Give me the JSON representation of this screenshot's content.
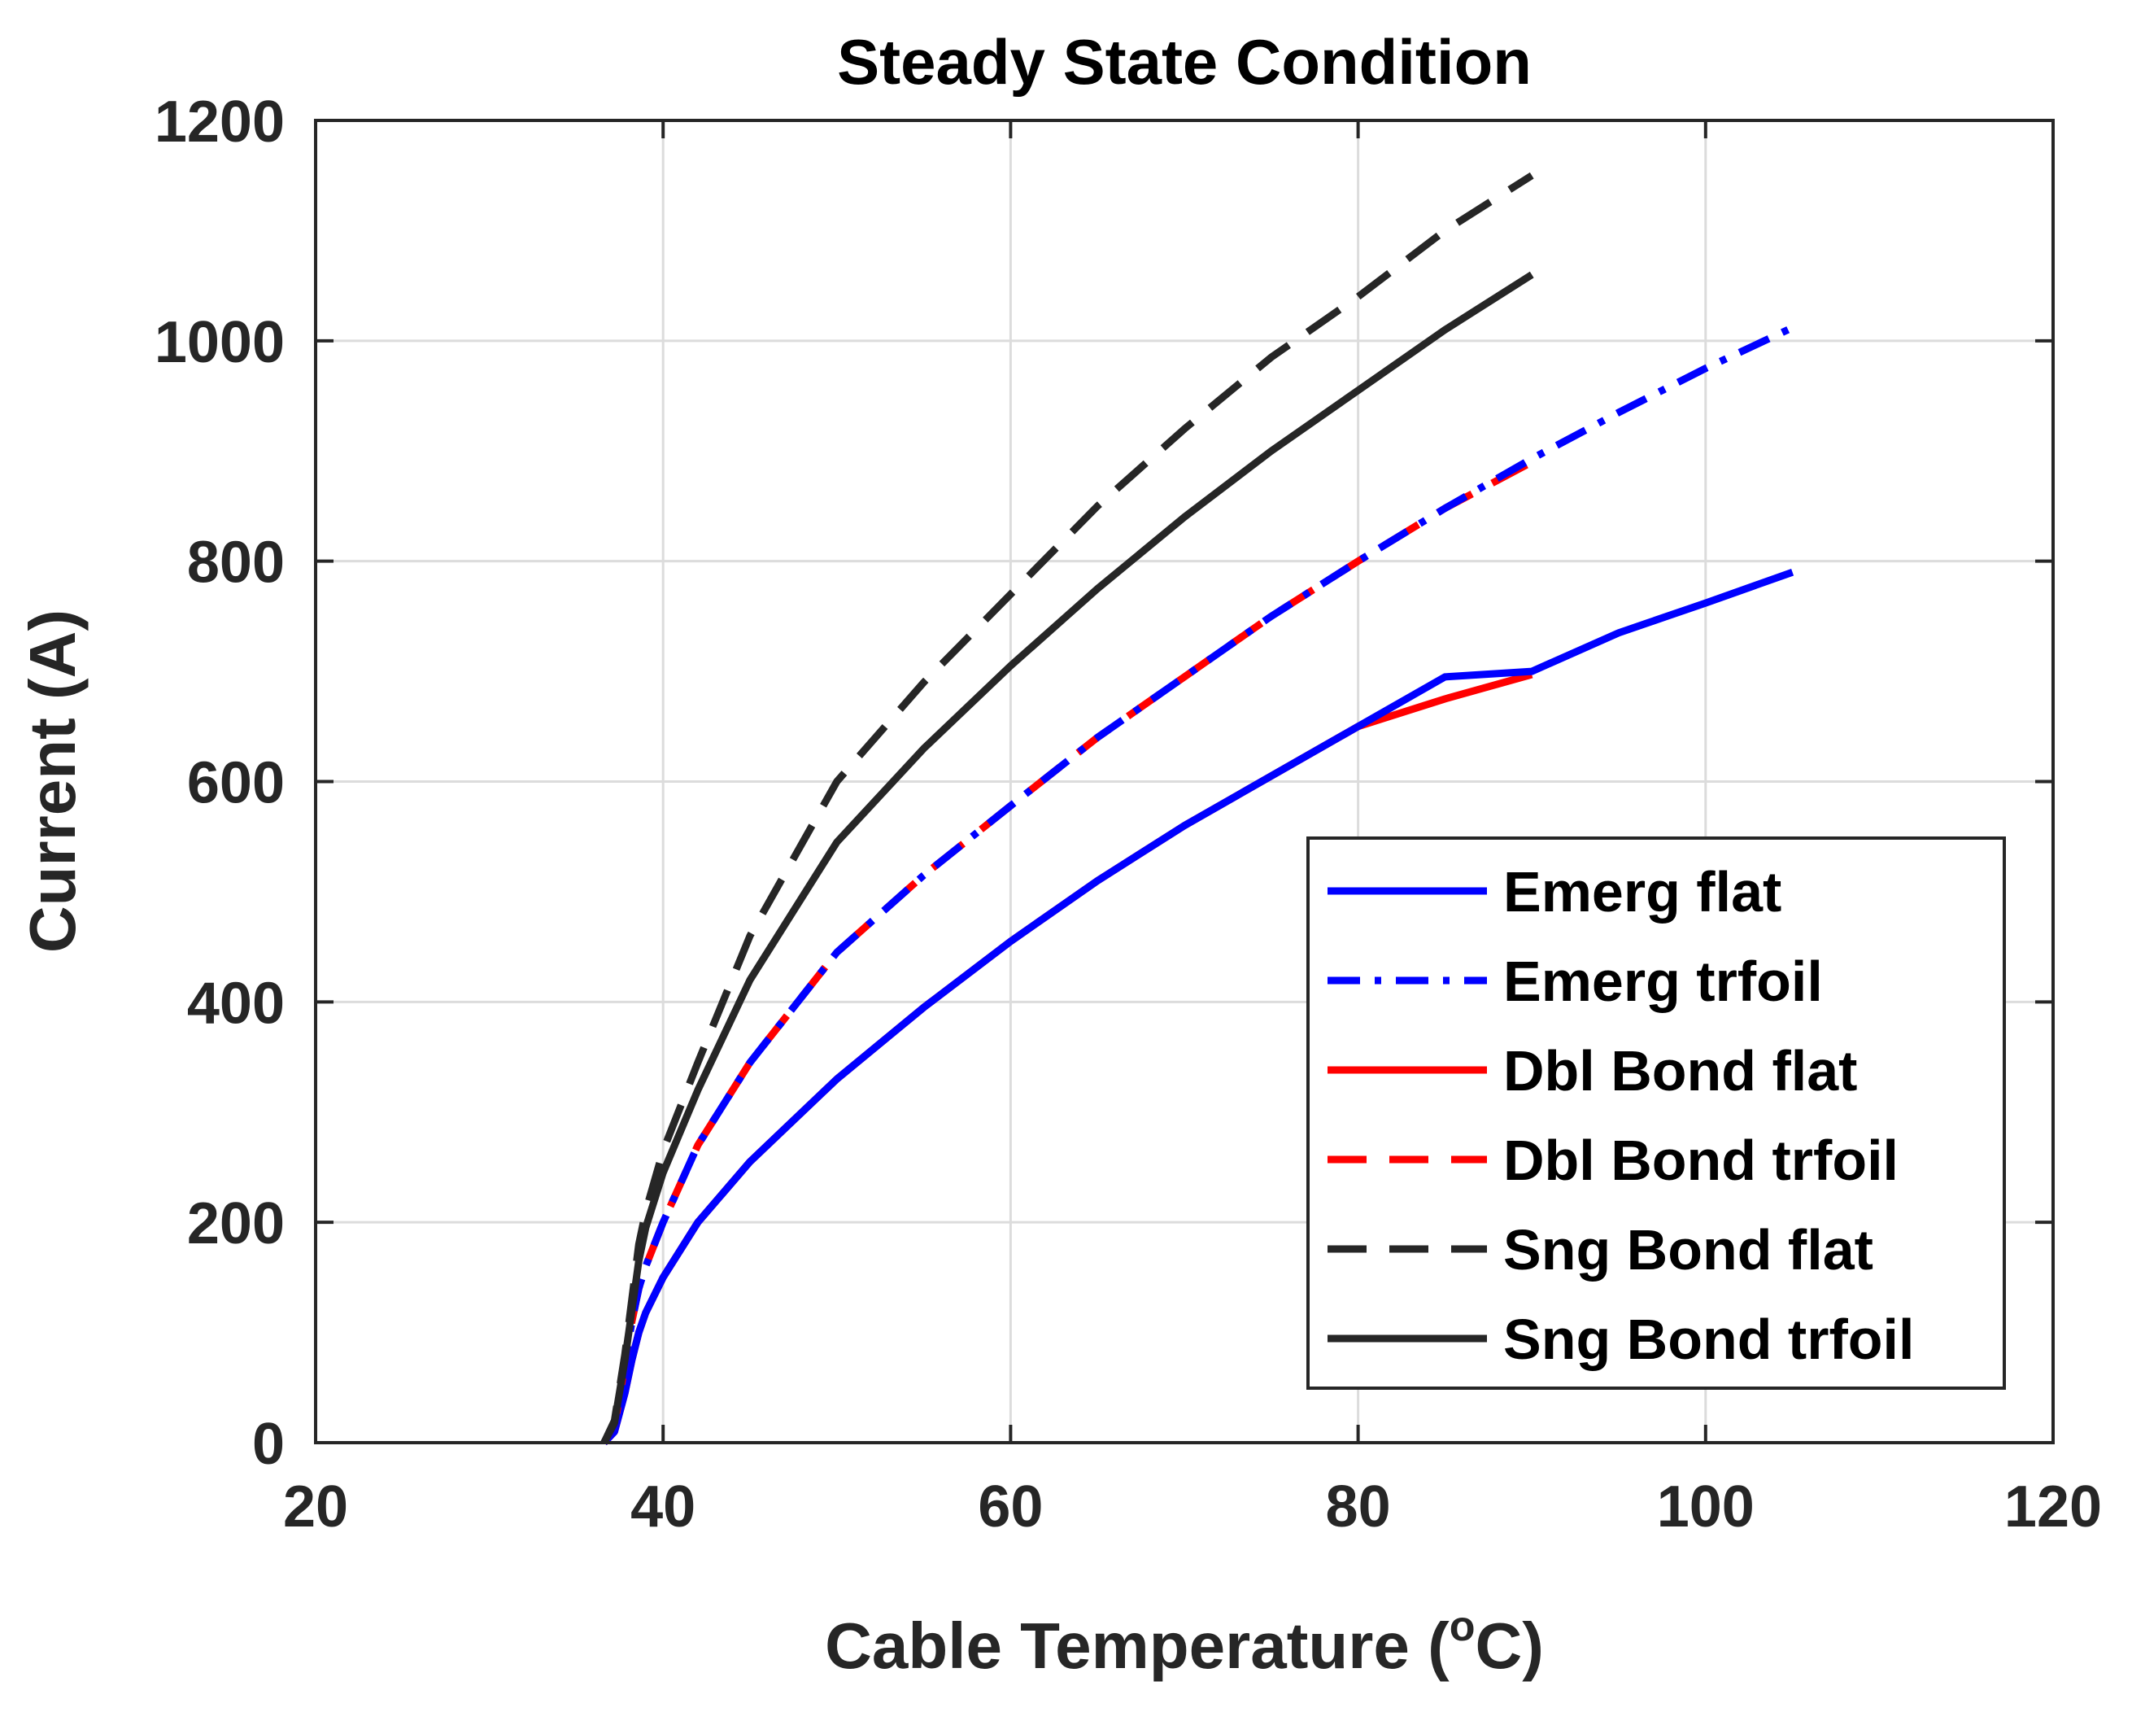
{
  "chart_data": {
    "type": "line",
    "title": "Steady State Condition",
    "xlabel": "Cable Temperature (",
    "xlabel_degree": "o",
    "xlabel_unit": "C)",
    "ylabel": "Current (A)",
    "xlim": [
      20,
      120
    ],
    "ylim": [
      0,
      1200
    ],
    "xticks": [
      20,
      40,
      60,
      80,
      100,
      120
    ],
    "yticks": [
      0,
      200,
      400,
      600,
      800,
      1000,
      1200
    ],
    "grid": true,
    "legend_position": "lower-right",
    "series": [
      {
        "name": "Emerg flat",
        "color": "#0000ff",
        "style": "solid",
        "x": [
          36.6,
          37.2,
          37.8,
          38.2,
          38.6,
          39,
          40,
          42,
          45,
          50,
          55,
          60,
          65,
          70,
          75,
          80,
          85,
          90,
          95,
          100,
          105
        ],
        "y": [
          0,
          10,
          45,
          75,
          100,
          118,
          150,
          200,
          255,
          330,
          395,
          455,
          510,
          560,
          605,
          650,
          695,
          700,
          735,
          762,
          790
        ]
      },
      {
        "name": "Emerg trfoil",
        "color": "#0000ff",
        "style": "dashdot",
        "x": [
          36.6,
          37.2,
          37.8,
          38.2,
          38.6,
          39,
          40,
          42,
          45,
          50,
          55,
          60,
          65,
          70,
          75,
          80,
          85,
          90,
          95,
          100,
          105
        ],
        "y": [
          0,
          15,
          70,
          110,
          140,
          160,
          200,
          270,
          345,
          445,
          515,
          578,
          640,
          695,
          750,
          800,
          848,
          893,
          935,
          975,
          1012
        ]
      },
      {
        "name": "Dbl Bond flat",
        "color": "#ff0000",
        "style": "solid",
        "x": [
          36.6,
          37.2,
          37.8,
          38.2,
          38.6,
          39,
          40,
          42,
          45,
          50,
          55,
          60,
          65,
          70,
          75,
          80,
          85,
          90
        ],
        "y": [
          0,
          10,
          45,
          75,
          100,
          118,
          150,
          200,
          255,
          330,
          395,
          455,
          510,
          560,
          605,
          650,
          675,
          697
        ]
      },
      {
        "name": "Dbl Bond trfoil",
        "color": "#ff0000",
        "style": "dashed",
        "x": [
          36.6,
          37.2,
          37.8,
          38.2,
          38.6,
          39,
          40,
          42,
          45,
          50,
          55,
          60,
          65,
          70,
          75,
          80,
          85,
          90
        ],
        "y": [
          0,
          15,
          70,
          110,
          140,
          160,
          200,
          270,
          345,
          445,
          515,
          578,
          640,
          695,
          750,
          800,
          848,
          890
        ]
      },
      {
        "name": "Sng Bond flat",
        "color": "#262626",
        "style": "dashed",
        "x": [
          36.6,
          37.2,
          37.8,
          38.2,
          38.6,
          39,
          40,
          42,
          45,
          50,
          55,
          60,
          65,
          70,
          75,
          80,
          85,
          90
        ],
        "y": [
          0,
          20,
          80,
          130,
          180,
          210,
          265,
          345,
          460,
          600,
          690,
          770,
          850,
          920,
          985,
          1040,
          1100,
          1150
        ]
      },
      {
        "name": "Sng Bond trfoil",
        "color": "#262626",
        "style": "solid",
        "x": [
          36.6,
          37.2,
          37.8,
          38.2,
          38.6,
          39,
          40,
          42,
          45,
          50,
          55,
          60,
          65,
          70,
          75,
          80,
          85,
          90
        ],
        "y": [
          0,
          18,
          75,
          120,
          165,
          195,
          245,
          320,
          420,
          545,
          630,
          705,
          775,
          840,
          900,
          955,
          1010,
          1060
        ]
      }
    ]
  }
}
